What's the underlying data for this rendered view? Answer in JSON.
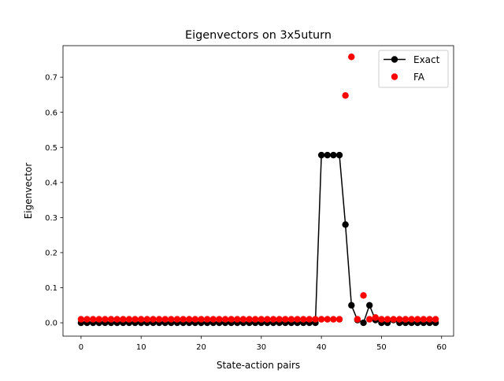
{
  "chart_data": {
    "type": "line",
    "title": "Eigenvectors on 3x5uturn",
    "xlabel": "State-action pairs",
    "ylabel": "Eigenvector",
    "xlim": [
      -3,
      62
    ],
    "ylim": [
      -0.038,
      0.79
    ],
    "x_ticks": [
      0,
      10,
      20,
      30,
      40,
      50,
      60
    ],
    "y_ticks": [
      0.0,
      0.1,
      0.2,
      0.3,
      0.4,
      0.5,
      0.6,
      0.7
    ],
    "y_tick_labels": [
      "0.0",
      "0.1",
      "0.2",
      "0.3",
      "0.4",
      "0.5",
      "0.6",
      "0.7"
    ],
    "grid": false,
    "legend_position": "top-right",
    "series": [
      {
        "name": "Exact",
        "style": "line+markers",
        "color": "#000000",
        "x": [
          0,
          1,
          2,
          3,
          4,
          5,
          6,
          7,
          8,
          9,
          10,
          11,
          12,
          13,
          14,
          15,
          16,
          17,
          18,
          19,
          20,
          21,
          22,
          23,
          24,
          25,
          26,
          27,
          28,
          29,
          30,
          31,
          32,
          33,
          34,
          35,
          36,
          37,
          38,
          39,
          40,
          41,
          42,
          43,
          44,
          45,
          46,
          47,
          48,
          49,
          50,
          51,
          52,
          53,
          54,
          55,
          56,
          57,
          58,
          59
        ],
        "values": [
          0,
          0,
          0,
          0,
          0,
          0,
          0,
          0,
          0,
          0,
          0,
          0,
          0,
          0,
          0,
          0,
          0,
          0,
          0,
          0,
          0,
          0,
          0,
          0,
          0,
          0,
          0,
          0,
          0,
          0,
          0,
          0,
          0,
          0,
          0,
          0,
          0,
          0,
          0,
          0,
          0.478,
          0.478,
          0.478,
          0.478,
          0.28,
          0.05,
          0.008,
          0,
          0.05,
          0.008,
          0,
          0,
          0.008,
          0,
          0,
          0,
          0,
          0,
          0,
          0
        ]
      },
      {
        "name": "FA",
        "style": "markers",
        "color": "#ff0000",
        "x": [
          0,
          1,
          2,
          3,
          4,
          5,
          6,
          7,
          8,
          9,
          10,
          11,
          12,
          13,
          14,
          15,
          16,
          17,
          18,
          19,
          20,
          21,
          22,
          23,
          24,
          25,
          26,
          27,
          28,
          29,
          30,
          31,
          32,
          33,
          34,
          35,
          36,
          37,
          38,
          39,
          40,
          41,
          42,
          43,
          44,
          45,
          46,
          47,
          48,
          49,
          50,
          51,
          52,
          53,
          54,
          55,
          56,
          57,
          58,
          59
        ],
        "values": [
          0.01,
          0.01,
          0.01,
          0.01,
          0.01,
          0.01,
          0.01,
          0.01,
          0.01,
          0.01,
          0.01,
          0.01,
          0.01,
          0.01,
          0.01,
          0.01,
          0.01,
          0.01,
          0.01,
          0.01,
          0.01,
          0.01,
          0.01,
          0.01,
          0.01,
          0.01,
          0.01,
          0.01,
          0.01,
          0.01,
          0.01,
          0.01,
          0.01,
          0.01,
          0.01,
          0.01,
          0.01,
          0.01,
          0.01,
          0.01,
          0.01,
          0.01,
          0.01,
          0.01,
          0.648,
          0.758,
          0.01,
          0.078,
          0.01,
          0.015,
          0.01,
          0.01,
          0.01,
          0.01,
          0.01,
          0.01,
          0.01,
          0.01,
          0.01,
          0.01
        ]
      }
    ]
  }
}
